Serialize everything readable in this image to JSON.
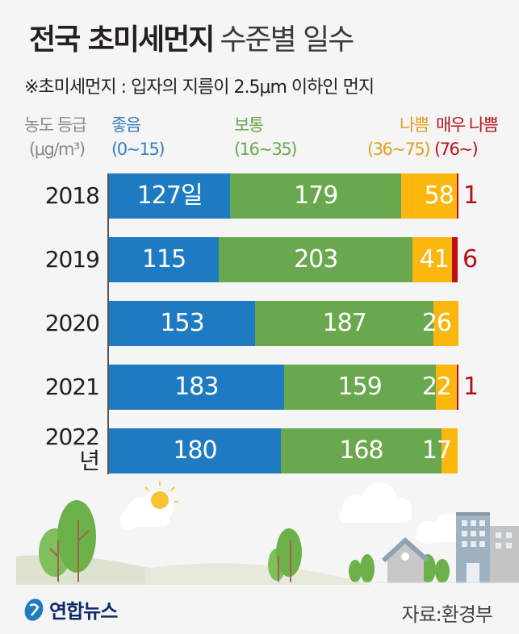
{
  "header": {
    "title_bold": "전국 초미세먼지",
    "title_light": "수준별 일수",
    "subtitle": "※초미세먼지 : 입자의 지름이 2.5μm 이하인 먼지"
  },
  "legend": {
    "label_line1": "농도 등급",
    "label_line2": "(μg/m³)",
    "items": [
      {
        "name": "좋음",
        "range": "(0~15)",
        "color": "#3a7fbf"
      },
      {
        "name": "보통",
        "range": "(16~35)",
        "color": "#6aa84f"
      },
      {
        "name": "나쁨",
        "range": "(36~75)",
        "color": "#e0a020"
      },
      {
        "name": "매우 나쁨",
        "range": "(76~)",
        "color": "#b4121b"
      }
    ]
  },
  "chart_data": {
    "type": "bar",
    "orientation": "horizontal-stacked",
    "title": "전국 초미세먼지 수준별 일수",
    "categories": [
      "2018",
      "2019",
      "2020",
      "2021",
      "2022"
    ],
    "category_labels": [
      "2018",
      "2019",
      "2020",
      "2021",
      "2022\n년"
    ],
    "unit": "일",
    "series": [
      {
        "name": "좋음",
        "color": "#1f7bc1",
        "values": [
          127,
          115,
          153,
          183,
          180
        ]
      },
      {
        "name": "보통",
        "color": "#6aa84f",
        "values": [
          179,
          203,
          187,
          159,
          168
        ]
      },
      {
        "name": "나쁨",
        "color": "#fbb70d",
        "values": [
          58,
          41,
          26,
          22,
          17
        ]
      },
      {
        "name": "매우 나쁨",
        "color": "#c00d16",
        "values": [
          1,
          6,
          0,
          1,
          0
        ]
      }
    ],
    "value_labels": [
      [
        "127일",
        "179",
        "58",
        "1"
      ],
      [
        "115",
        "203",
        "41",
        "6"
      ],
      [
        "153",
        "187",
        "26",
        ""
      ],
      [
        "183",
        "159",
        "22",
        "1"
      ],
      [
        "180",
        "168",
        "17",
        ""
      ]
    ],
    "xlim": [
      0,
      365
    ]
  },
  "footer": {
    "logo_text": "연합뉴스",
    "source": "자료:환경부"
  }
}
